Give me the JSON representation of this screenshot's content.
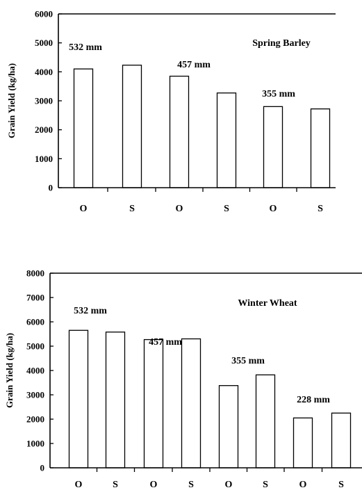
{
  "chart_data": [
    {
      "type": "bar",
      "title": "Spring Barley",
      "ylabel": "Grain Yield (kg/ha)",
      "xlabel": "",
      "ylim": [
        0,
        6000
      ],
      "yticks": [
        0,
        1000,
        2000,
        3000,
        4000,
        5000,
        6000
      ],
      "grid": false,
      "legend": "none",
      "categories": [
        "O",
        "S",
        "O",
        "S",
        "O",
        "S"
      ],
      "values": [
        4100,
        4230,
        3850,
        3270,
        2800,
        2720
      ],
      "annotations": [
        {
          "text": "532 mm",
          "near_category_index": 0
        },
        {
          "text": "457 mm",
          "near_category_index": 2
        },
        {
          "text": "355 mm",
          "near_category_index": 4
        }
      ]
    },
    {
      "type": "bar",
      "title": "Winter Wheat",
      "ylabel": "Grain Yield (kg/ha)",
      "xlabel": "",
      "ylim": [
        0,
        8000
      ],
      "yticks": [
        0,
        1000,
        2000,
        3000,
        4000,
        5000,
        6000,
        7000,
        8000
      ],
      "grid": false,
      "legend": "none",
      "categories": [
        "O",
        "S",
        "O",
        "S",
        "O",
        "S",
        "O",
        "S"
      ],
      "values": [
        5650,
        5580,
        5270,
        5300,
        3380,
        3820,
        2050,
        2250
      ],
      "annotations": [
        {
          "text": "532 mm",
          "near_category_index": 0
        },
        {
          "text": "457 mm",
          "near_category_index": 2
        },
        {
          "text": "355 mm",
          "near_category_index": 4
        },
        {
          "text": "228 mm",
          "near_category_index": 6
        }
      ]
    }
  ]
}
